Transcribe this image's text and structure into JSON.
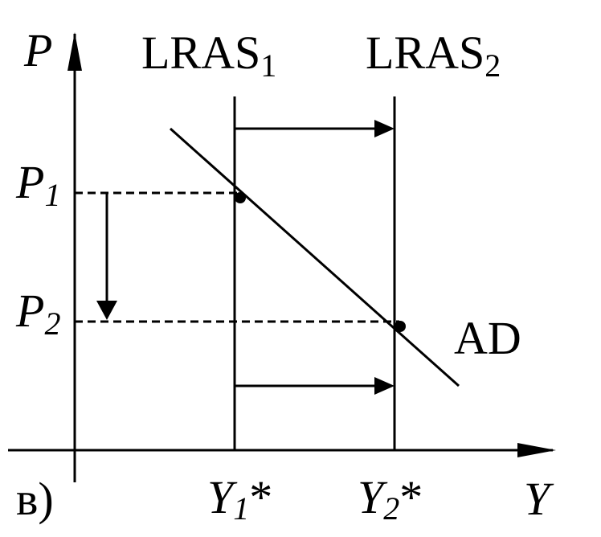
{
  "labels": {
    "y_axis": "P",
    "x_axis": "Y",
    "lras1": {
      "text": "LRAS",
      "sub": "1"
    },
    "lras2": {
      "text": "LRAS",
      "sub": "2"
    },
    "p1": {
      "text": "P",
      "sub": "1"
    },
    "p2": {
      "text": "P",
      "sub": "2"
    },
    "ad": "AD",
    "y1": {
      "text": "Y",
      "sub": "1",
      "star": "*"
    },
    "y2": {
      "text": "Y",
      "sub": "2",
      "star": "*"
    },
    "panel": "в)"
  }
}
